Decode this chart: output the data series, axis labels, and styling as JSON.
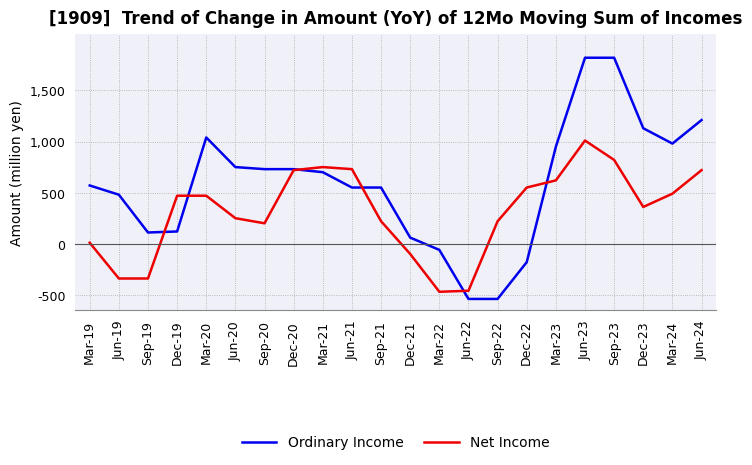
{
  "title": "[1909]  Trend of Change in Amount (YoY) of 12Mo Moving Sum of Incomes",
  "ylabel": "Amount (million yen)",
  "ylim": [
    -650,
    2050
  ],
  "yticks": [
    -500,
    0,
    500,
    1000,
    1500
  ],
  "background_color": "#ffffff",
  "plot_bg_color": "#f0f0f8",
  "grid_color": "#aaaaaa",
  "x_labels": [
    "Mar-19",
    "Jun-19",
    "Sep-19",
    "Dec-19",
    "Mar-20",
    "Jun-20",
    "Sep-20",
    "Dec-20",
    "Mar-21",
    "Jun-21",
    "Sep-21",
    "Dec-21",
    "Mar-22",
    "Jun-22",
    "Sep-22",
    "Dec-22",
    "Mar-23",
    "Jun-23",
    "Sep-23",
    "Dec-23",
    "Mar-24",
    "Jun-24"
  ],
  "ordinary_income": [
    570,
    480,
    110,
    120,
    1040,
    750,
    730,
    730,
    700,
    550,
    550,
    60,
    -60,
    -540,
    -540,
    -180,
    950,
    1820,
    1820,
    1130,
    980,
    1210
  ],
  "net_income": [
    10,
    -340,
    -340,
    470,
    470,
    250,
    200,
    720,
    750,
    730,
    220,
    -100,
    -470,
    -460,
    220,
    550,
    620,
    1010,
    820,
    360,
    490,
    720
  ],
  "ordinary_color": "#0000ee",
  "net_color": "#ee0000",
  "title_fontsize": 12,
  "label_fontsize": 10,
  "tick_fontsize": 9,
  "legend_fontsize": 10
}
